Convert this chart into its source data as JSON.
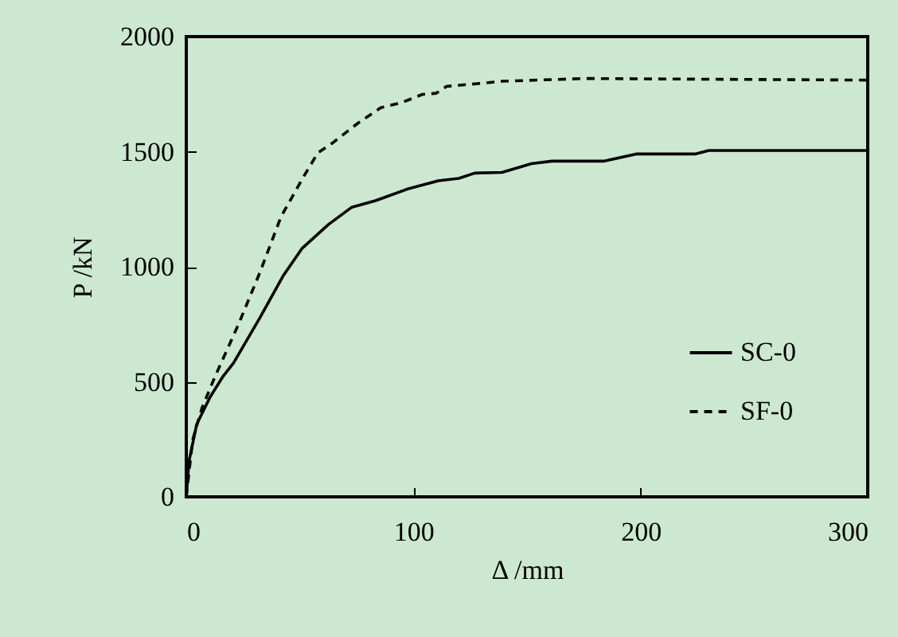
{
  "chart_data": {
    "type": "line",
    "xlabel": "Δ /mm",
    "ylabel": "P /kN",
    "xlim": [
      0,
      300
    ],
    "xticks": [
      0,
      100,
      200,
      300
    ],
    "ylim": [
      0,
      2000
    ],
    "yticks": [
      0,
      500,
      1000,
      1500,
      2000
    ],
    "grid": false,
    "legend": "bottom right",
    "marker": "none",
    "series": [
      {
        "name": "SC-0",
        "color": "#000000",
        "line_style": "solid",
        "x": [
          0,
          1.2,
          4.6,
          10.4,
          16.2,
          20.8,
          32.4,
          42.8,
          50.9,
          62.5,
          72.9,
          83.3,
          97.2,
          111,
          120,
          127,
          139,
          152,
          161,
          184,
          198,
          224,
          230,
          300
        ],
        "values": [
          0,
          155,
          316,
          432,
          524,
          582,
          778,
          963,
          1079,
          1183,
          1259,
          1287,
          1337,
          1374,
          1384,
          1407,
          1410,
          1448,
          1459,
          1459,
          1490,
          1490,
          1505,
          1505
        ]
      },
      {
        "name": "SF-0",
        "color": "#000000",
        "line_style": "dashed",
        "x": [
          0,
          2.8,
          6.9,
          12.7,
          18.5,
          23.2,
          32.4,
          41.7,
          50.9,
          57.9,
          64.8,
          75.3,
          85.6,
          95,
          104,
          110,
          114.6,
          132,
          139,
          175,
          300
        ],
        "values": [
          0,
          247,
          386,
          524,
          651,
          755,
          975,
          1217,
          1379,
          1495,
          1541,
          1622,
          1691,
          1714,
          1749,
          1754,
          1784,
          1799,
          1806,
          1818,
          1811
        ]
      }
    ]
  }
}
